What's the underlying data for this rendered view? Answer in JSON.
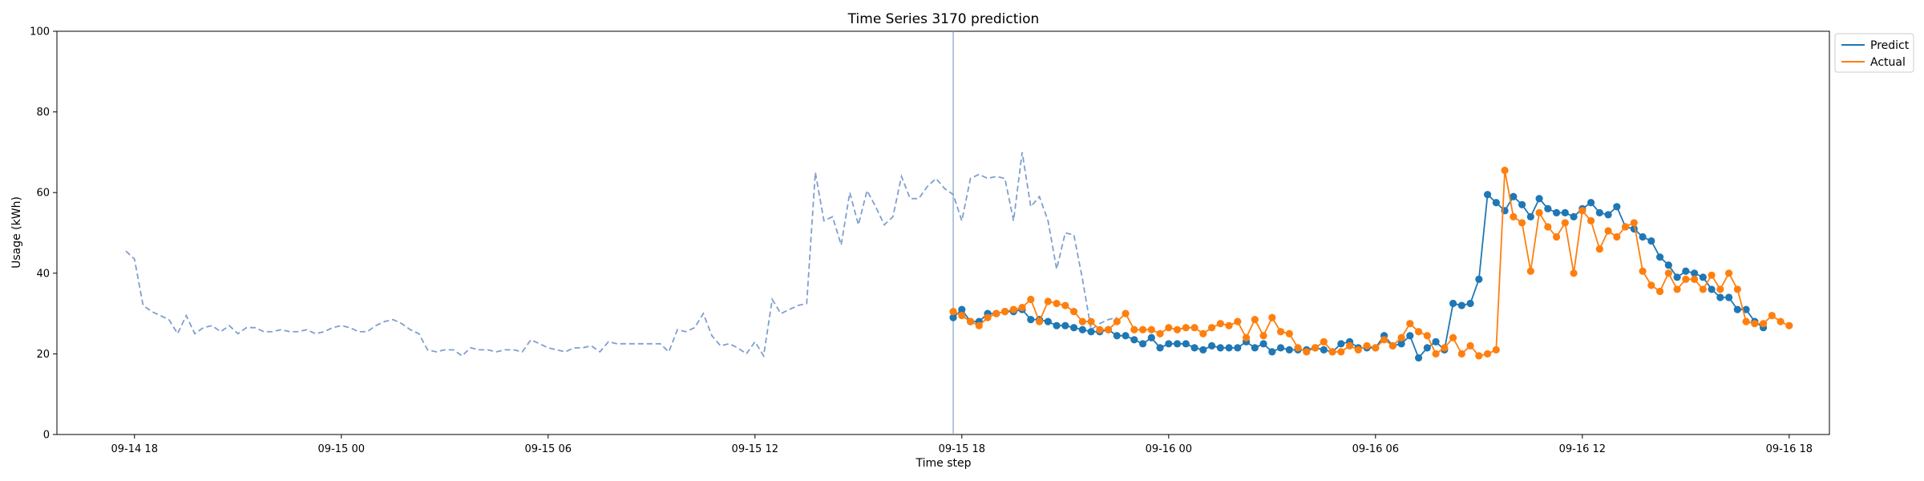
{
  "chart_data": {
    "type": "line",
    "title": "Time Series 3170 prediction",
    "xlabel": "Time step",
    "ylabel": "Usage (kWh)",
    "ylim": [
      0,
      100
    ],
    "yticks": [
      0,
      20,
      40,
      60,
      80,
      100
    ],
    "xlim": [
      "2023-09-14T15:45",
      "2023-09-16T19:10"
    ],
    "xticks": [
      {
        "t": "2023-09-14T18:00",
        "label": "09-14 18"
      },
      {
        "t": "2023-09-15T00:00",
        "label": "09-15 00"
      },
      {
        "t": "2023-09-15T06:00",
        "label": "09-15 06"
      },
      {
        "t": "2023-09-15T12:00",
        "label": "09-15 12"
      },
      {
        "t": "2023-09-15T18:00",
        "label": "09-15 18"
      },
      {
        "t": "2023-09-16T00:00",
        "label": "09-16 00"
      },
      {
        "t": "2023-09-16T06:00",
        "label": "09-16 06"
      },
      {
        "t": "2023-09-16T12:00",
        "label": "09-16 12"
      },
      {
        "t": "2023-09-16T18:00",
        "label": "09-16 18"
      }
    ],
    "interval_minutes": 15,
    "history": {
      "start": "2023-09-14T17:45",
      "color": "#7f9fcf",
      "style": "dashed",
      "values": [
        45.5,
        43.5,
        32,
        30.5,
        29.5,
        28.5,
        25,
        29.5,
        25,
        26.5,
        27,
        25.5,
        27,
        25,
        26.5,
        26.5,
        25.5,
        25.5,
        26,
        25.5,
        25.5,
        26,
        25,
        25.5,
        26.5,
        27,
        26.5,
        25.5,
        25.5,
        27,
        28,
        28.5,
        27.5,
        26,
        25,
        21,
        20.5,
        21,
        21,
        19.5,
        21.5,
        21,
        21,
        20.5,
        21,
        21,
        20.5,
        23.5,
        22.5,
        21.5,
        21,
        20.5,
        21.5,
        21.5,
        22,
        20.5,
        23,
        22.5,
        22.5,
        22.5,
        22.5,
        22.5,
        22.5,
        20.5,
        26,
        25.5,
        26.5,
        30,
        24.5,
        22,
        22.5,
        21.5,
        20,
        23,
        19.5,
        33.5,
        30,
        31,
        32,
        32.5,
        65,
        53,
        54,
        47,
        60,
        52,
        60.5,
        56.5,
        52,
        54,
        64,
        58.5,
        58.5,
        61.5,
        63.5,
        61,
        59.5,
        53,
        63.5,
        64.5,
        63.5,
        64,
        63.5,
        53,
        70,
        56.5,
        59,
        53,
        41,
        50,
        49.5,
        38.5,
        26,
        27.5,
        28.5,
        29
      ]
    },
    "forecast_start_marker": "2023-09-15T17:45",
    "forecast_start": "2023-09-15T17:45",
    "series": [
      {
        "name": "Predict",
        "color": "#1f77b4",
        "values": [
          29,
          31,
          28,
          28,
          30,
          30,
          30.5,
          30.5,
          31,
          28.5,
          28.5,
          28,
          27,
          27,
          26.5,
          26,
          25.5,
          25.5,
          26,
          24.5,
          24.5,
          23.5,
          22.5,
          24,
          21.5,
          22.5,
          22.5,
          22.5,
          21.5,
          21,
          22,
          21.5,
          21.5,
          21.5,
          23,
          21.5,
          22.5,
          20.5,
          21.5,
          21,
          21,
          21,
          21.5,
          21,
          20.5,
          22.5,
          23,
          21.5,
          21.5,
          21.5,
          24.5,
          22,
          22.5,
          24.5,
          19,
          21.5,
          23,
          21,
          32.5,
          32,
          32.5,
          38.5,
          59.5,
          57.5,
          55.5,
          59,
          57,
          54,
          58.5,
          56,
          55,
          55,
          54,
          56,
          57.5,
          55,
          54.5,
          56.5,
          51.5,
          51,
          49,
          48,
          44,
          42,
          39,
          40.5,
          40,
          39,
          36,
          34,
          34,
          31,
          31,
          28,
          26.5
        ]
      },
      {
        "name": "Actual",
        "color": "#ff7f0e",
        "values": [
          30.5,
          29.5,
          28,
          27,
          29,
          30,
          30.5,
          31,
          31.5,
          33.5,
          28,
          33,
          32.5,
          32,
          30.5,
          28,
          28,
          26,
          26,
          28,
          30,
          26,
          26,
          26,
          25,
          26.5,
          26,
          26.5,
          26.5,
          25,
          26.5,
          27.5,
          27,
          28,
          24,
          28.5,
          24.5,
          29,
          25.5,
          25,
          21.5,
          20.5,
          21.5,
          23,
          20.5,
          20.5,
          22,
          21,
          22,
          21.5,
          23.5,
          22,
          24,
          27.5,
          25.5,
          24.5,
          20,
          21.5,
          24,
          20,
          22,
          19.5,
          20,
          21,
          65.5,
          54,
          52.5,
          40.5,
          55,
          51.5,
          49,
          52.5,
          40,
          55.5,
          53,
          46,
          50.5,
          49,
          51.5,
          52.5,
          40.5,
          37,
          35.5,
          40,
          36,
          38.5,
          38.5,
          36,
          39.5,
          36,
          40,
          36,
          28,
          27.5,
          27.5,
          29.5,
          28,
          27
        ]
      }
    ],
    "legend": {
      "placement": "top-right",
      "entries": [
        "Predict",
        "Actual"
      ]
    },
    "grid": false
  }
}
